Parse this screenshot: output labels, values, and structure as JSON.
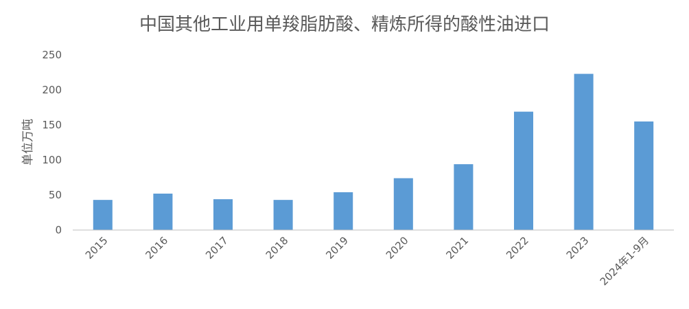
{
  "chart_data": {
    "type": "bar",
    "title": "中国其他工业用单羧脂肪酸、精炼所得的酸性油进口",
    "xlabel": "",
    "ylabel": "单位万吨",
    "categories": [
      "2015",
      "2016",
      "2017",
      "2018",
      "2019",
      "2020",
      "2021",
      "2022",
      "2023",
      "2024年1-9月"
    ],
    "values": [
      43,
      52,
      44,
      43,
      54,
      74,
      94,
      169,
      223,
      155
    ],
    "ylim": [
      0,
      250
    ],
    "yticks": [
      0,
      50,
      100,
      150,
      200,
      250
    ],
    "bar_color": "#5b9bd5",
    "grid": false,
    "legend": "none"
  }
}
